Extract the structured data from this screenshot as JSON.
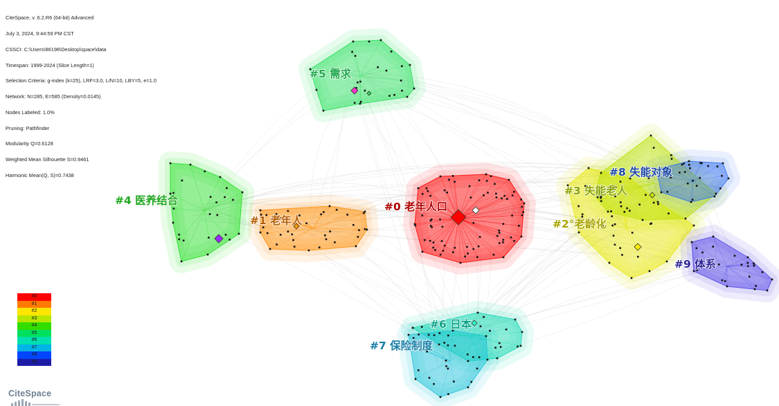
{
  "info_lines": [
    "CiteSpace, v. 6.2.R6 (64-bit) Advanced",
    "July 3, 2024, 9:44:59 PM CST",
    "CSSCI: C:\\Users\\86198\\Desktop\\space\\data",
    "Timespan: 1999-2024 (Slice Length=1)",
    "Selection Criteria: g-index (k=25), LRF=3.0, L/N=10, LBY=5, e=1.0",
    "Network: N=285, E=585 (Density=0.0145)",
    "Nodes Labeled: 1.0%",
    "Pruning: Pathfinder",
    "Modularity Q=0.6128",
    "Weighted Mean Silhouette S=0.9461",
    "Harmonic Mean(Q, S)=0.7438"
  ],
  "clusters": [
    {
      "id": "#0",
      "label": "#0 老年人口",
      "color": "#ff0000",
      "label_color": "#b00000",
      "key_node": "老年人口"
    },
    {
      "id": "#1",
      "label": "#1 老年人",
      "color": "#ff8c00",
      "label_color": "#b35a00"
    },
    {
      "id": "#2",
      "label": "#2°老龄化",
      "color": "#e6e600",
      "label_color": "#a9a400"
    },
    {
      "id": "#3",
      "label": "#3 失能老人",
      "color": "#b7e000",
      "label_color": "#8aa300"
    },
    {
      "id": "#4",
      "label": "#4 医养结合",
      "color": "#22dd22",
      "label_color": "#1ea81e"
    },
    {
      "id": "#5",
      "label": "#5 需求",
      "color": "#22dd55",
      "label_color": "#1ea84a"
    },
    {
      "id": "#6",
      "label": "#6 日本",
      "color": "#10d8b0",
      "label_color": "#0aa388"
    },
    {
      "id": "#7",
      "label": "#7 保险制度",
      "color": "#17c0d8",
      "label_color": "#1a7fa8"
    },
    {
      "id": "#8",
      "label": "#8 失能对象",
      "color": "#2f6ef0",
      "label_color": "#1d48a6"
    },
    {
      "id": "#9",
      "label": "#9 体系",
      "color": "#4d3fe6",
      "label_color": "#2c2396"
    }
  ],
  "legend": [
    {
      "label": "#0",
      "color": "#ff0000"
    },
    {
      "label": "#1",
      "color": "#ff7a00"
    },
    {
      "label": "#2",
      "color": "#ffe600"
    },
    {
      "label": "#3",
      "color": "#b8e600"
    },
    {
      "label": "#4",
      "color": "#33dd00"
    },
    {
      "label": "#5",
      "color": "#00e060"
    },
    {
      "label": "#6",
      "color": "#00e0b0"
    },
    {
      "label": "#7",
      "color": "#00b4e6"
    },
    {
      "label": "#8",
      "color": "#0046ff"
    },
    {
      "label": "#9",
      "color": "#1c1ca6"
    }
  ],
  "logo": {
    "text": "CiteSpace"
  }
}
